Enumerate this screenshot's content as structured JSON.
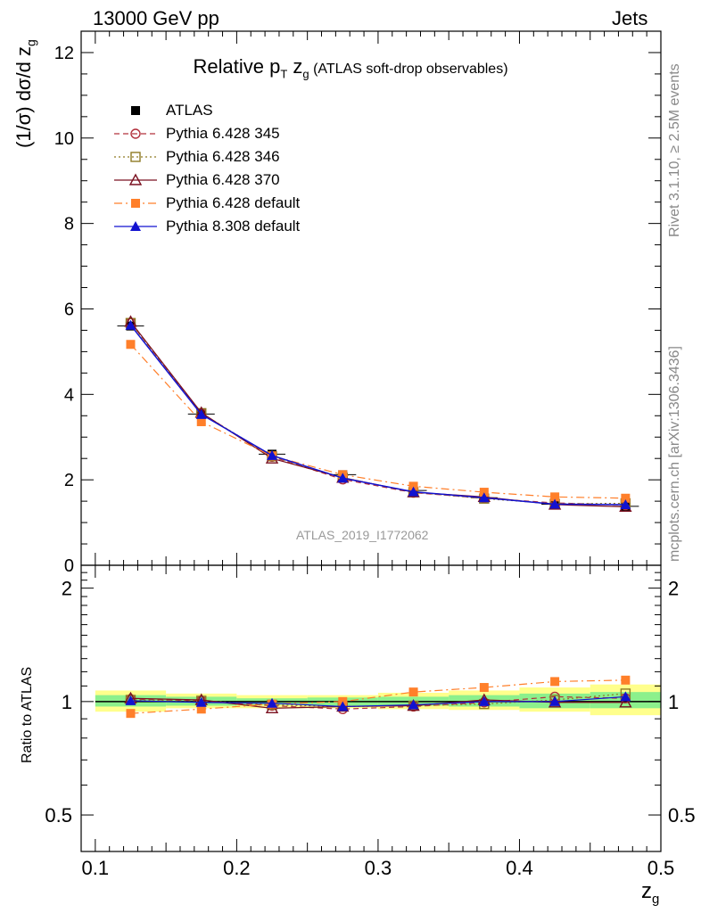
{
  "header": {
    "left": "13000 GeV pp",
    "right": "Jets"
  },
  "sidebar": {
    "rivet": "Rivet 3.1.10, ≥ 2.5M events",
    "mcplots": "mcplots.cern.ch [arXiv:1306.3436]"
  },
  "title": {
    "main": "Relative p",
    "sub_t": "T",
    "z": " z",
    "sub_g": "g",
    "rest": " (ATLAS soft-drop observables)"
  },
  "watermark": "ATLAS_2019_I1772062",
  "main_ylabel": "(1/σ) dσ/d z",
  "main_ylabel_sub": "g",
  "ratio_ylabel": "Ratio to ATLAS",
  "xlabel": "z",
  "xlabel_sub": "g",
  "colors": {
    "ATLAS": "#000000",
    "p345": "#b2303c",
    "p346": "#8f7a24",
    "p370": "#7a1020",
    "p6def": "#ff7f2a",
    "p8def": "#1212d0",
    "band_outer": "#ffff8c",
    "band_inner": "#8cf08c"
  },
  "chart_data": [
    {
      "type": "line",
      "panel": "main",
      "x": [
        0.125,
        0.175,
        0.225,
        0.275,
        0.325,
        0.375,
        0.425,
        0.475
      ],
      "xlim": [
        0.09,
        0.5
      ],
      "ylim": [
        0,
        12.5
      ],
      "yticks": [
        0,
        2,
        4,
        6,
        8,
        10,
        12
      ],
      "ytick_labels": [
        "0",
        "2",
        "4",
        "6",
        "8",
        "10",
        "12"
      ],
      "series": [
        {
          "key": "ATLAS",
          "name": "ATLAS",
          "marker": "square-filled",
          "line": "none",
          "values": [
            5.6,
            3.54,
            2.6,
            2.12,
            1.75,
            1.58,
            1.43,
            1.38
          ]
        },
        {
          "key": "p345",
          "name": "Pythia 6.428 345",
          "marker": "circle-open",
          "line": "dashed",
          "values": [
            5.68,
            3.56,
            2.54,
            2.01,
            1.7,
            1.57,
            1.46,
            1.41
          ]
        },
        {
          "key": "p346",
          "name": "Pythia 6.428 346",
          "marker": "square-open",
          "line": "dotted",
          "values": [
            5.67,
            3.56,
            2.55,
            2.05,
            1.71,
            1.56,
            1.44,
            1.45
          ]
        },
        {
          "key": "p370",
          "name": "Pythia 6.428 370",
          "marker": "triangle-open",
          "line": "solid",
          "values": [
            5.7,
            3.57,
            2.5,
            2.05,
            1.71,
            1.6,
            1.42,
            1.37
          ]
        },
        {
          "key": "p6def",
          "name": "Pythia 6.428 default",
          "marker": "square-filled",
          "line": "dashdot",
          "values": [
            5.17,
            3.36,
            2.56,
            2.12,
            1.85,
            1.71,
            1.6,
            1.57
          ]
        },
        {
          "key": "p8def",
          "name": "Pythia 8.308 default",
          "marker": "triangle-filled",
          "line": "solid",
          "values": [
            5.62,
            3.53,
            2.57,
            2.04,
            1.72,
            1.58,
            1.43,
            1.42
          ]
        }
      ]
    },
    {
      "type": "line",
      "panel": "ratio",
      "x": [
        0.125,
        0.175,
        0.225,
        0.275,
        0.325,
        0.375,
        0.425,
        0.475
      ],
      "xlim": [
        0.09,
        0.5
      ],
      "ylim": [
        0.4,
        2.3
      ],
      "yscale": "log",
      "yticks": [
        0.5,
        1,
        2
      ],
      "ytick_labels": [
        "0.5",
        "1",
        "2"
      ],
      "xticks": [
        0.1,
        0.2,
        0.3,
        0.4,
        0.5
      ],
      "xtick_labels": [
        "0.1",
        "0.2",
        "0.3",
        "0.4",
        "0.5"
      ],
      "band_edges": [
        0.1,
        0.15,
        0.2,
        0.25,
        0.3,
        0.35,
        0.4,
        0.45,
        0.5
      ],
      "band_outer": [
        [
          0.94,
          1.07
        ],
        [
          0.96,
          1.05
        ],
        [
          0.96,
          1.04
        ],
        [
          0.96,
          1.04
        ],
        [
          0.955,
          1.055
        ],
        [
          0.95,
          1.07
        ],
        [
          0.94,
          1.09
        ],
        [
          0.92,
          1.11
        ]
      ],
      "band_inner": [
        [
          0.97,
          1.04
        ],
        [
          0.975,
          1.03
        ],
        [
          0.98,
          1.02
        ],
        [
          0.975,
          1.025
        ],
        [
          0.975,
          1.03
        ],
        [
          0.97,
          1.04
        ],
        [
          0.96,
          1.05
        ],
        [
          0.96,
          1.06
        ]
      ],
      "series": [
        {
          "key": "p345",
          "values": [
            1.015,
            1.005,
            0.975,
            0.955,
            0.97,
            0.995,
            1.03,
            1.02
          ]
        },
        {
          "key": "p346",
          "values": [
            1.01,
            1.005,
            0.98,
            0.97,
            0.975,
            0.985,
            1.01,
            1.05
          ]
        },
        {
          "key": "p370",
          "values": [
            1.02,
            1.01,
            0.96,
            0.97,
            0.975,
            1.01,
            0.995,
            0.995
          ]
        },
        {
          "key": "p6def",
          "values": [
            0.93,
            0.955,
            0.985,
            1.0,
            1.06,
            1.09,
            1.13,
            1.14
          ]
        },
        {
          "key": "p8def",
          "values": [
            1.005,
            0.995,
            0.99,
            0.97,
            0.98,
            1.0,
            1.0,
            1.03
          ]
        }
      ]
    }
  ]
}
